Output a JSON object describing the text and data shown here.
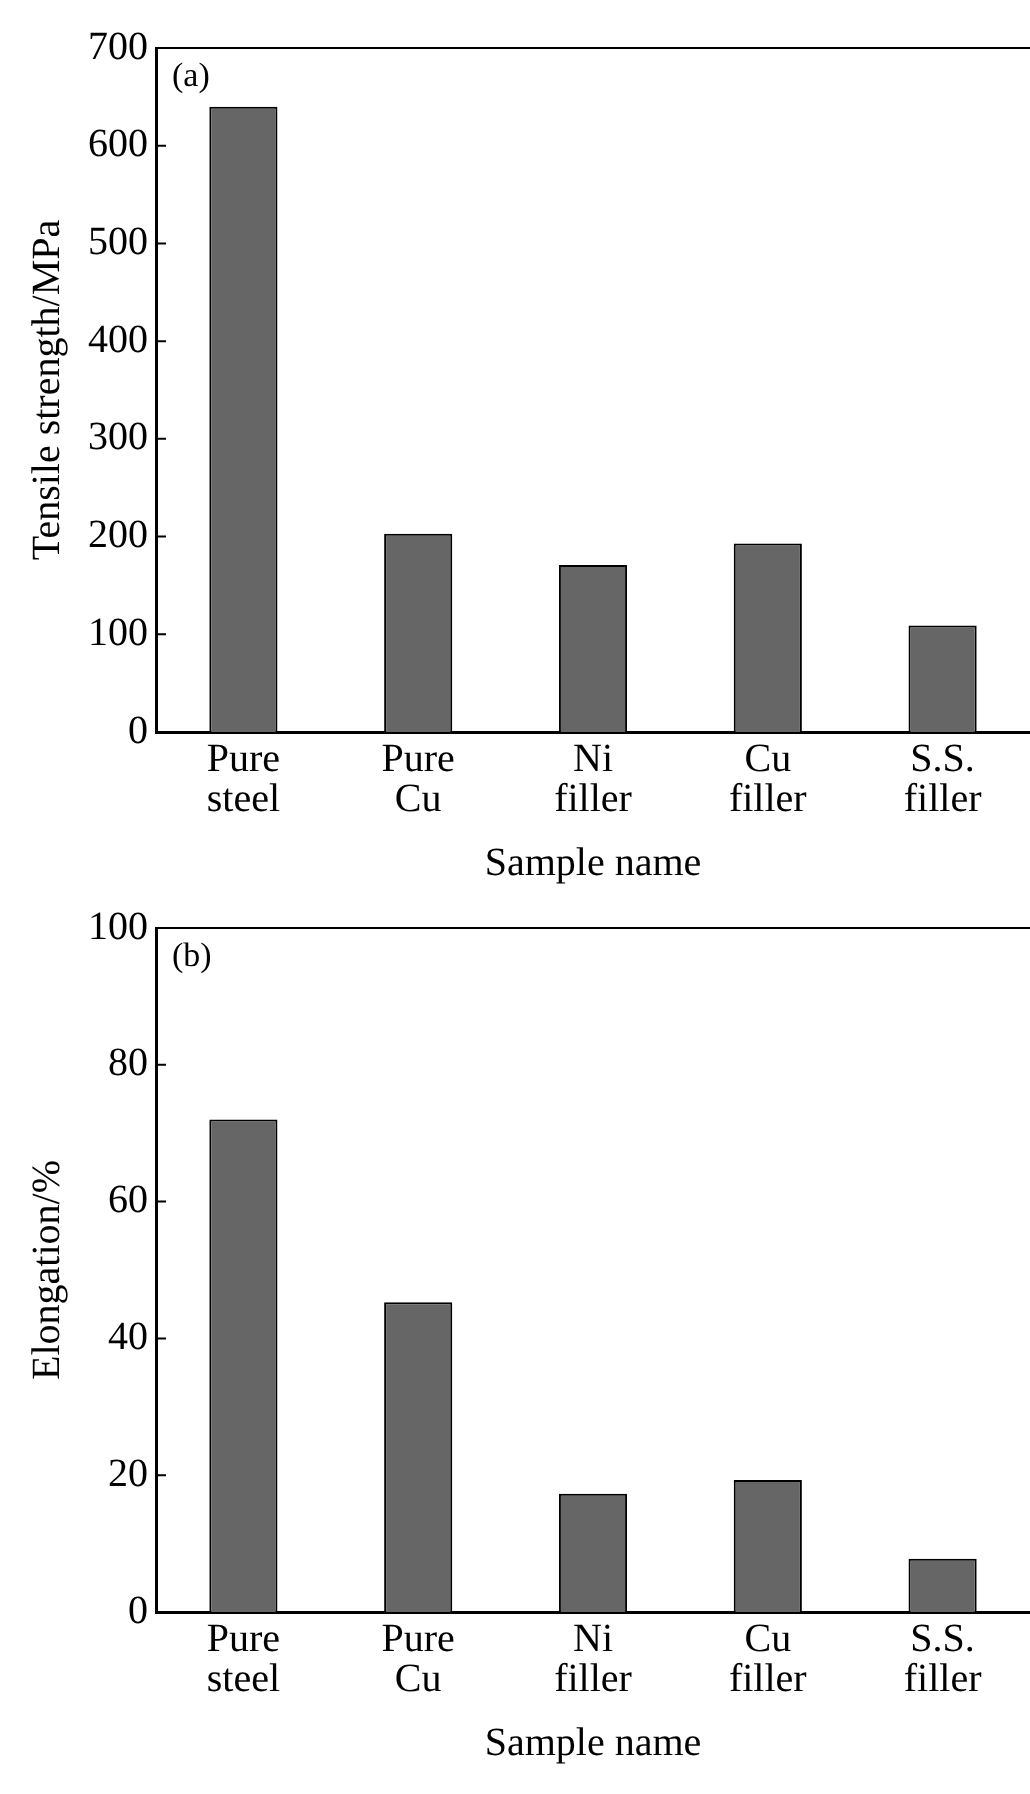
{
  "chart_data": [
    {
      "type": "bar",
      "categories": [
        "Pure steel",
        "Pure Cu",
        "Ni filler",
        "Cu filler",
        "S.S. filler"
      ],
      "values": [
        640,
        203,
        171,
        193,
        109
      ],
      "color": "#666666",
      "xlabel": "Sample name",
      "ylabel": "Tensile strength/MPa",
      "ylim": [
        0,
        700
      ],
      "yticks": [
        0,
        100,
        200,
        300,
        400,
        500,
        600,
        700
      ],
      "annotations": [
        "(a)"
      ],
      "legend": false
    },
    {
      "type": "bar",
      "categories": [
        "Pure steel",
        "Pure Cu",
        "Ni filler",
        "Cu filler",
        "S.S. filler"
      ],
      "values": [
        72,
        45.3,
        17.3,
        19.3,
        7.8
      ],
      "color": "#666666",
      "xlabel": "Sample name",
      "ylabel": "Elongation/%",
      "ylim": [
        0,
        100
      ],
      "yticks": [
        0,
        20,
        40,
        60,
        80,
        100
      ],
      "annotations": [
        "(b)"
      ],
      "legend": false
    }
  ]
}
